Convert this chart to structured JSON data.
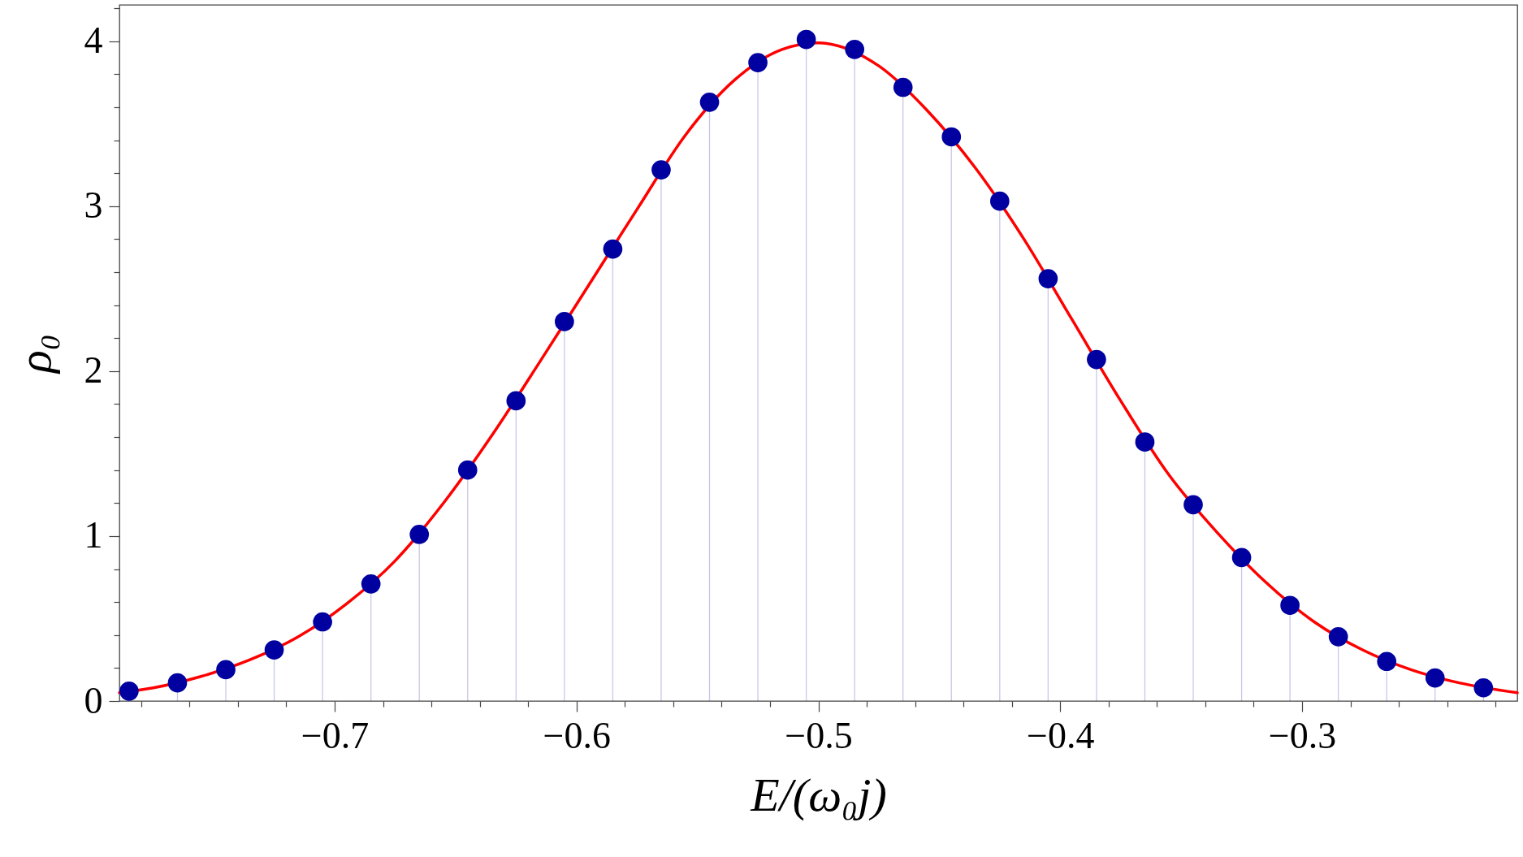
{
  "chart_data": {
    "type": "lollipop",
    "xlabel": "E/(ω₀j)",
    "ylabel": "ρ₀",
    "xlim": [
      -0.789,
      -0.211
    ],
    "ylim": [
      0,
      4.22
    ],
    "xticks": [
      {
        "value": -0.78,
        "label": null
      },
      {
        "value": -0.76,
        "label": null
      },
      {
        "value": -0.74,
        "label": null
      },
      {
        "value": -0.72,
        "label": null
      },
      -0.7,
      {
        "value": -0.68,
        "label": null
      },
      {
        "value": -0.66,
        "label": null
      },
      {
        "value": -0.64,
        "label": null
      },
      {
        "value": -0.62,
        "label": null
      },
      -0.6,
      {
        "value": -0.58,
        "label": null
      },
      {
        "value": -0.56,
        "label": null
      },
      {
        "value": -0.54,
        "label": null
      },
      {
        "value": -0.52,
        "label": null
      },
      -0.5,
      {
        "value": -0.48,
        "label": null
      },
      {
        "value": -0.46,
        "label": null
      },
      {
        "value": -0.44,
        "label": null
      },
      {
        "value": -0.42,
        "label": null
      },
      -0.4,
      {
        "value": -0.38,
        "label": null
      },
      {
        "value": -0.36,
        "label": null
      },
      {
        "value": -0.34,
        "label": null
      },
      {
        "value": -0.32,
        "label": null
      },
      -0.3,
      {
        "value": -0.28,
        "label": null
      },
      {
        "value": -0.26,
        "label": null
      },
      {
        "value": -0.24,
        "label": null
      },
      {
        "value": -0.22,
        "label": null
      }
    ],
    "yticks": [
      0,
      {
        "value": 0.2,
        "label": null
      },
      {
        "value": 0.4,
        "label": null
      },
      {
        "value": 0.6,
        "label": null
      },
      {
        "value": 0.8,
        "label": null
      },
      1,
      {
        "value": 1.2,
        "label": null
      },
      {
        "value": 1.4,
        "label": null
      },
      {
        "value": 1.6,
        "label": null
      },
      {
        "value": 1.8,
        "label": null
      },
      2,
      {
        "value": 2.2,
        "label": null
      },
      {
        "value": 2.4,
        "label": null
      },
      {
        "value": 2.6,
        "label": null
      },
      {
        "value": 2.8,
        "label": null
      },
      3,
      {
        "value": 3.2,
        "label": null
      },
      {
        "value": 3.4,
        "label": null
      },
      {
        "value": 3.6,
        "label": null
      },
      {
        "value": 3.8,
        "label": null
      },
      4,
      {
        "value": 4.2,
        "label": null
      }
    ],
    "grid": false,
    "series": [
      {
        "marker": "circle",
        "color": "#0000a0",
        "x": [
          -0.785,
          -0.765,
          -0.745,
          -0.725,
          -0.705,
          -0.685,
          -0.665,
          -0.645,
          -0.625,
          -0.605,
          -0.585,
          -0.565,
          -0.545,
          -0.525,
          -0.505,
          -0.485,
          -0.465,
          -0.445,
          -0.425,
          -0.405,
          -0.385,
          -0.365,
          -0.345,
          -0.325,
          -0.305,
          -0.285,
          -0.265,
          -0.245,
          -0.225
        ],
        "values": [
          0.06,
          0.11,
          0.19,
          0.31,
          0.48,
          0.71,
          1.01,
          1.4,
          1.82,
          2.3,
          2.74,
          3.22,
          3.63,
          3.87,
          4.01,
          3.95,
          3.72,
          3.42,
          3.03,
          2.56,
          2.07,
          1.57,
          1.19,
          0.87,
          0.58,
          0.39,
          0.24,
          0.14,
          0.08
        ]
      },
      {
        "type": "line",
        "marker": "none",
        "color": "#ff0000",
        "line_style": "solid",
        "x": [
          -0.789,
          -0.775,
          -0.755,
          -0.735,
          -0.715,
          -0.695,
          -0.675,
          -0.655,
          -0.635,
          -0.615,
          -0.595,
          -0.575,
          -0.555,
          -0.535,
          -0.515,
          -0.5,
          -0.475,
          -0.455,
          -0.435,
          -0.415,
          -0.395,
          -0.375,
          -0.355,
          -0.335,
          -0.315,
          -0.295,
          -0.275,
          -0.255,
          -0.235,
          -0.211
        ],
        "values": [
          0.05,
          0.08,
          0.15,
          0.25,
          0.39,
          0.59,
          0.85,
          1.2,
          1.61,
          2.06,
          2.52,
          2.98,
          3.43,
          3.76,
          3.95,
          3.99,
          3.85,
          3.58,
          3.23,
          2.8,
          2.31,
          1.82,
          1.37,
          1.02,
          0.72,
          0.48,
          0.31,
          0.19,
          0.11,
          0.05
        ]
      }
    ]
  }
}
